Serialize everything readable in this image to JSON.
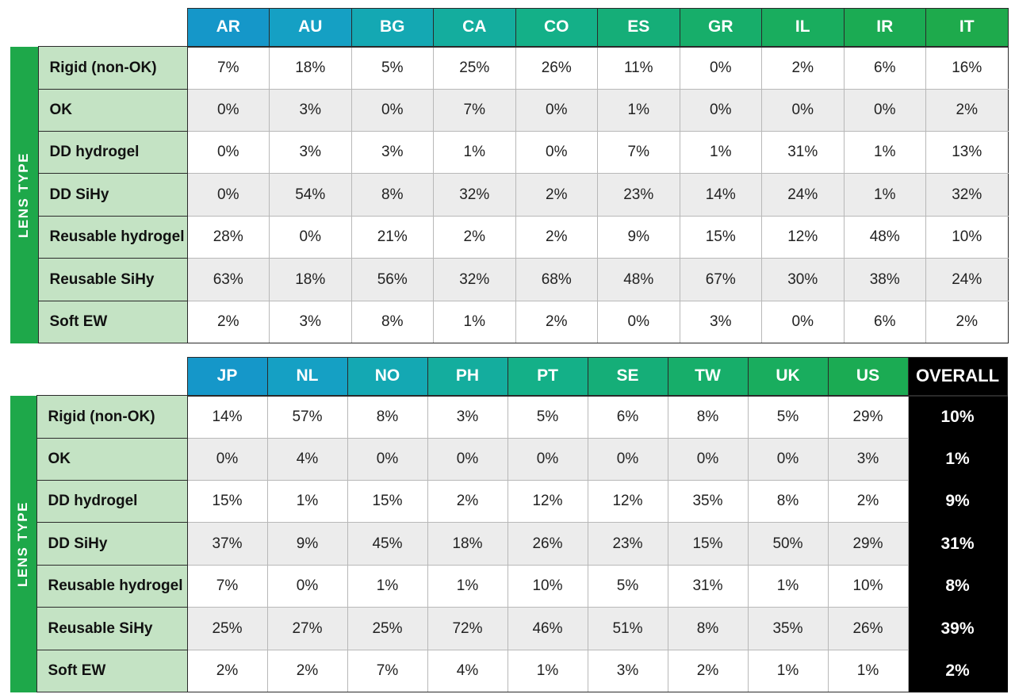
{
  "axis_label": "LENS TYPE",
  "colors": {
    "header_gradient": [
      "#1597c9",
      "#15a0c4",
      "#14a8b3",
      "#14ad9e",
      "#14b088",
      "#15ae78",
      "#17ae6a",
      "#19ad5e",
      "#1bab53",
      "#1eaa4c"
    ],
    "side_tab": "#1ea84a",
    "row_label_bg": "#c4e3c4",
    "overall_bg": "#000000"
  },
  "chart_data": [
    {
      "type": "table",
      "columns": [
        "AR",
        "AU",
        "BG",
        "CA",
        "CO",
        "ES",
        "GR",
        "IL",
        "IR",
        "IT"
      ],
      "rows": [
        {
          "label": "Rigid (non-OK)",
          "values": [
            "7%",
            "18%",
            "5%",
            "25%",
            "26%",
            "11%",
            "0%",
            "2%",
            "6%",
            "16%"
          ]
        },
        {
          "label": "OK",
          "values": [
            "0%",
            "3%",
            "0%",
            "7%",
            "0%",
            "1%",
            "0%",
            "0%",
            "0%",
            "2%"
          ]
        },
        {
          "label": "DD hydrogel",
          "values": [
            "0%",
            "3%",
            "3%",
            "1%",
            "0%",
            "7%",
            "1%",
            "31%",
            "1%",
            "13%"
          ]
        },
        {
          "label": "DD SiHy",
          "values": [
            "0%",
            "54%",
            "8%",
            "32%",
            "2%",
            "23%",
            "14%",
            "24%",
            "1%",
            "32%"
          ]
        },
        {
          "label": "Reusable hydrogel",
          "values": [
            "28%",
            "0%",
            "21%",
            "2%",
            "2%",
            "9%",
            "15%",
            "12%",
            "48%",
            "10%"
          ]
        },
        {
          "label": "Reusable SiHy",
          "values": [
            "63%",
            "18%",
            "56%",
            "32%",
            "68%",
            "48%",
            "67%",
            "30%",
            "38%",
            "24%"
          ]
        },
        {
          "label": "Soft EW",
          "values": [
            "2%",
            "3%",
            "8%",
            "1%",
            "2%",
            "0%",
            "3%",
            "0%",
            "6%",
            "2%"
          ]
        }
      ]
    },
    {
      "type": "table",
      "columns": [
        "JP",
        "NL",
        "NO",
        "PH",
        "PT",
        "SE",
        "TW",
        "UK",
        "US"
      ],
      "overall_label": "OVERALL",
      "rows": [
        {
          "label": "Rigid (non-OK)",
          "values": [
            "14%",
            "57%",
            "8%",
            "3%",
            "5%",
            "6%",
            "8%",
            "5%",
            "29%"
          ],
          "overall": "10%"
        },
        {
          "label": "OK",
          "values": [
            "0%",
            "4%",
            "0%",
            "0%",
            "0%",
            "0%",
            "0%",
            "0%",
            "3%"
          ],
          "overall": "1%"
        },
        {
          "label": "DD hydrogel",
          "values": [
            "15%",
            "1%",
            "15%",
            "2%",
            "12%",
            "12%",
            "35%",
            "8%",
            "2%"
          ],
          "overall": "9%"
        },
        {
          "label": "DD SiHy",
          "values": [
            "37%",
            "9%",
            "45%",
            "18%",
            "26%",
            "23%",
            "15%",
            "50%",
            "29%"
          ],
          "overall": "31%"
        },
        {
          "label": "Reusable hydrogel",
          "values": [
            "7%",
            "0%",
            "1%",
            "1%",
            "10%",
            "5%",
            "31%",
            "1%",
            "10%"
          ],
          "overall": "8%"
        },
        {
          "label": "Reusable SiHy",
          "values": [
            "25%",
            "27%",
            "25%",
            "72%",
            "46%",
            "51%",
            "8%",
            "35%",
            "26%"
          ],
          "overall": "39%"
        },
        {
          "label": "Soft EW",
          "values": [
            "2%",
            "2%",
            "7%",
            "4%",
            "1%",
            "3%",
            "2%",
            "1%",
            "1%"
          ],
          "overall": "2%"
        }
      ]
    }
  ]
}
